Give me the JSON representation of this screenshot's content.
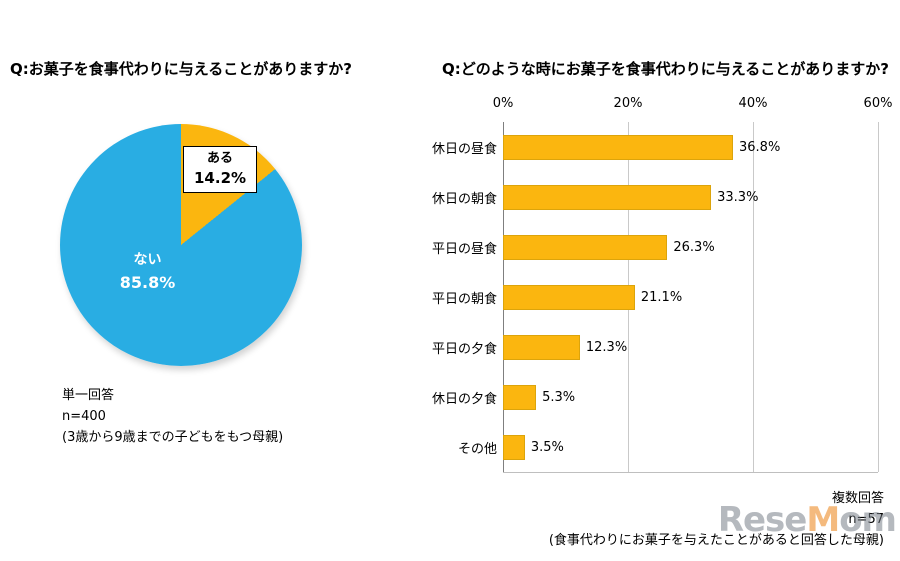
{
  "watermark": {
    "part1": "Rese",
    "part2": "M",
    "part3": "om"
  },
  "chart_data": [
    {
      "type": "pie",
      "title": "Q:お菓子を食事代わりに与えることがありますか?",
      "slices": [
        {
          "label": "ある",
          "value": 14.2,
          "pct_label": "14.2%",
          "color": "#FBB60F"
        },
        {
          "label": "ない",
          "value": 85.8,
          "pct_label": "85.8%",
          "color": "#29ADE3"
        }
      ],
      "legend_position": "none",
      "footnote_lines": [
        "単一回答",
        "n=400",
        "(3歳から9歳までの子どもをもつ母親)"
      ]
    },
    {
      "type": "bar",
      "title": "Q:どのような時にお菓子を食事代わりに与えることがありますか?",
      "orientation": "horizontal",
      "categories": [
        "休日の昼食",
        "休日の朝食",
        "平日の昼食",
        "平日の朝食",
        "平日の夕食",
        "休日の夕食",
        "その他"
      ],
      "values": [
        36.8,
        33.3,
        26.3,
        21.1,
        12.3,
        5.3,
        3.5
      ],
      "xlim": [
        0,
        60
      ],
      "ticks": [
        "0%",
        "20%",
        "40%",
        "60%"
      ],
      "grid": true,
      "bar_color": "#FBB60F",
      "footnote_lines": [
        "複数回答",
        "n=57",
        "(食事代わりにお菓子を与えたことがあると回答した母親)"
      ]
    }
  ]
}
